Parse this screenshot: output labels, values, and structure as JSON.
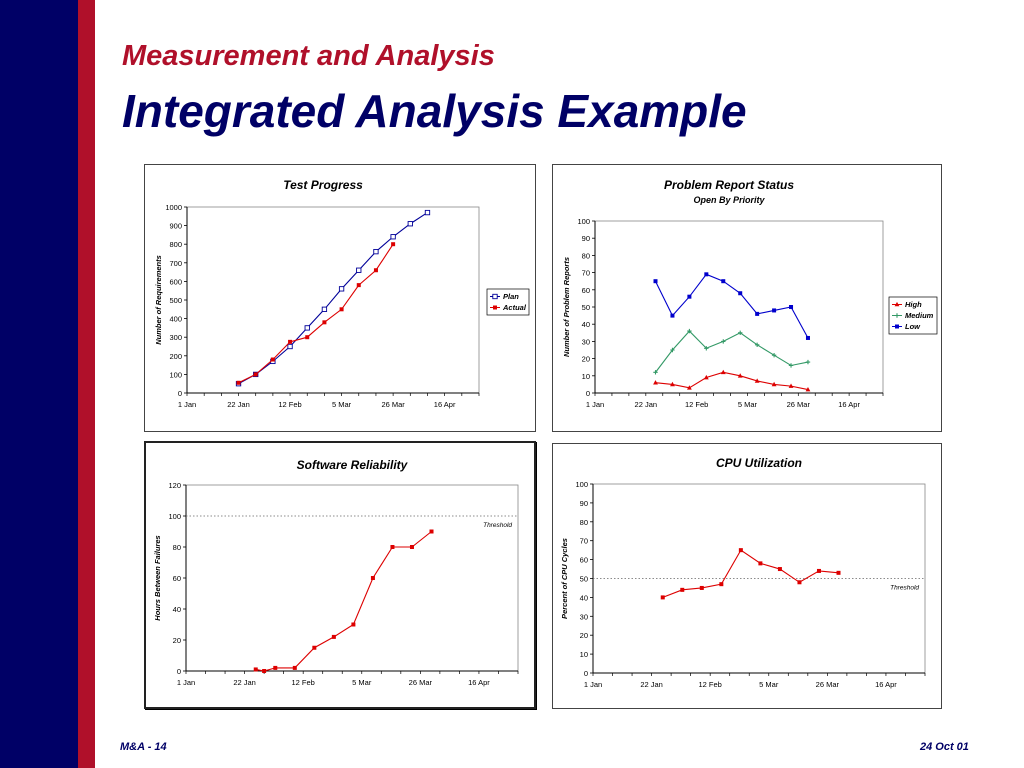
{
  "slide": {
    "supertitle": "Measurement and Analysis",
    "title": "Integrated Analysis Example",
    "footer_left": "M&A - 14",
    "footer_right": "24 Oct 01"
  },
  "colors": {
    "navy": "#000066",
    "crimson": "#b0102a",
    "plan": "#000099",
    "actual": "#dd0000",
    "high": "#dd0000",
    "medium": "#339966",
    "low": "#0000cc"
  },
  "chart_data": [
    {
      "type": "line",
      "title": "Test Progress",
      "subtitle": "",
      "xlabel": "",
      "ylabel": "Number of Requirements",
      "x_ticks": [
        "1 Jan",
        "22 Jan",
        "12 Feb",
        "5 Mar",
        "26 Mar",
        "16 Apr"
      ],
      "ylim": [
        0,
        1000
      ],
      "y_ticks": [
        "0",
        "100",
        "200",
        "300",
        "400",
        "500",
        "600",
        "700",
        "800",
        "900",
        "1000"
      ],
      "legend": "right",
      "series": [
        {
          "name": "Plan",
          "color": "#000099",
          "marker": "open-square",
          "points": [
            [
              "2001-01-22",
              50
            ],
            [
              "2001-01-29",
              100
            ],
            [
              "2001-02-05",
              170
            ],
            [
              "2001-02-12",
              250
            ],
            [
              "2001-02-19",
              350
            ],
            [
              "2001-02-26",
              450
            ],
            [
              "2001-03-05",
              560
            ],
            [
              "2001-03-12",
              660
            ],
            [
              "2001-03-19",
              760
            ],
            [
              "2001-03-26",
              840
            ],
            [
              "2001-04-02",
              910
            ],
            [
              "2001-04-09",
              970
            ]
          ]
        },
        {
          "name": "Actual",
          "color": "#dd0000",
          "marker": "filled-square",
          "points": [
            [
              "2001-01-22",
              55
            ],
            [
              "2001-01-29",
              100
            ],
            [
              "2001-02-05",
              180
            ],
            [
              "2001-02-12",
              275
            ],
            [
              "2001-02-19",
              300
            ],
            [
              "2001-02-26",
              380
            ],
            [
              "2001-03-05",
              450
            ],
            [
              "2001-03-12",
              580
            ],
            [
              "2001-03-19",
              660
            ],
            [
              "2001-03-26",
              800
            ]
          ]
        }
      ]
    },
    {
      "type": "line",
      "title": "Problem Report Status",
      "subtitle": "Open By Priority",
      "xlabel": "",
      "ylabel": "Number of Problem Reports",
      "x_ticks": [
        "1 Jan",
        "22 Jan",
        "12 Feb",
        "5 Mar",
        "26 Mar",
        "16 Apr"
      ],
      "ylim": [
        0,
        100
      ],
      "y_ticks": [
        "0",
        "10",
        "20",
        "30",
        "40",
        "50",
        "60",
        "70",
        "80",
        "90",
        "100"
      ],
      "legend": "right",
      "series": [
        {
          "name": "High",
          "color": "#dd0000",
          "marker": "triangle",
          "points": [
            [
              "2001-01-26",
              6
            ],
            [
              "2001-02-02",
              5
            ],
            [
              "2001-02-09",
              3
            ],
            [
              "2001-02-16",
              9
            ],
            [
              "2001-02-23",
              12
            ],
            [
              "2001-03-02",
              10
            ],
            [
              "2001-03-09",
              7
            ],
            [
              "2001-03-16",
              5
            ],
            [
              "2001-03-23",
              4
            ],
            [
              "2001-03-30",
              2
            ]
          ]
        },
        {
          "name": "Medium",
          "color": "#339966",
          "marker": "plus",
          "points": [
            [
              "2001-01-26",
              12
            ],
            [
              "2001-02-02",
              25
            ],
            [
              "2001-02-09",
              36
            ],
            [
              "2001-02-16",
              26
            ],
            [
              "2001-02-23",
              30
            ],
            [
              "2001-03-02",
              35
            ],
            [
              "2001-03-09",
              28
            ],
            [
              "2001-03-16",
              22
            ],
            [
              "2001-03-23",
              16
            ],
            [
              "2001-03-30",
              18
            ]
          ]
        },
        {
          "name": "Low",
          "color": "#0000cc",
          "marker": "filled-square",
          "points": [
            [
              "2001-01-26",
              65
            ],
            [
              "2001-02-02",
              45
            ],
            [
              "2001-02-09",
              56
            ],
            [
              "2001-02-16",
              69
            ],
            [
              "2001-02-23",
              65
            ],
            [
              "2001-03-02",
              58
            ],
            [
              "2001-03-09",
              46
            ],
            [
              "2001-03-16",
              48
            ],
            [
              "2001-03-23",
              50
            ],
            [
              "2001-03-30",
              32
            ]
          ]
        }
      ]
    },
    {
      "type": "line",
      "title": "Software Reliability",
      "subtitle": "",
      "xlabel": "",
      "ylabel": "Hours Between Failures",
      "x_ticks": [
        "1 Jan",
        "22 Jan",
        "12 Feb",
        "5 Mar",
        "26 Mar",
        "16 Apr"
      ],
      "ylim": [
        0,
        120
      ],
      "y_ticks": [
        "0",
        "20",
        "40",
        "60",
        "80",
        "100",
        "120"
      ],
      "legend": "none",
      "threshold": {
        "value": 100,
        "label": "Threshold"
      },
      "series": [
        {
          "name": "",
          "color": "#dd0000",
          "marker": "filled-square",
          "points": [
            [
              "2001-01-26",
              1
            ],
            [
              "2001-01-29",
              0
            ],
            [
              "2001-02-02",
              2
            ],
            [
              "2001-02-09",
              2
            ],
            [
              "2001-02-16",
              15
            ],
            [
              "2001-02-23",
              22
            ],
            [
              "2001-03-02",
              30
            ],
            [
              "2001-03-09",
              60
            ],
            [
              "2001-03-16",
              80
            ],
            [
              "2001-03-23",
              80
            ],
            [
              "2001-03-30",
              90
            ]
          ]
        }
      ]
    },
    {
      "type": "line",
      "title": "CPU Utilization",
      "subtitle": "",
      "xlabel": "",
      "ylabel": "Percent of CPU Cycles",
      "x_ticks": [
        "1 Jan",
        "22 Jan",
        "12 Feb",
        "5 Mar",
        "26 Mar",
        "16 Apr"
      ],
      "ylim": [
        0,
        100
      ],
      "y_ticks": [
        "0",
        "10",
        "20",
        "30",
        "40",
        "50",
        "60",
        "70",
        "80",
        "90",
        "100"
      ],
      "legend": "none",
      "threshold": {
        "value": 50,
        "label": "Threshold"
      },
      "series": [
        {
          "name": "",
          "color": "#dd0000",
          "marker": "filled-square",
          "points": [
            [
              "2001-01-26",
              40
            ],
            [
              "2001-02-02",
              44
            ],
            [
              "2001-02-09",
              45
            ],
            [
              "2001-02-16",
              47
            ],
            [
              "2001-02-23",
              65
            ],
            [
              "2001-03-02",
              58
            ],
            [
              "2001-03-09",
              55
            ],
            [
              "2001-03-16",
              48
            ],
            [
              "2001-03-23",
              54
            ],
            [
              "2001-03-30",
              53
            ]
          ]
        }
      ]
    }
  ]
}
